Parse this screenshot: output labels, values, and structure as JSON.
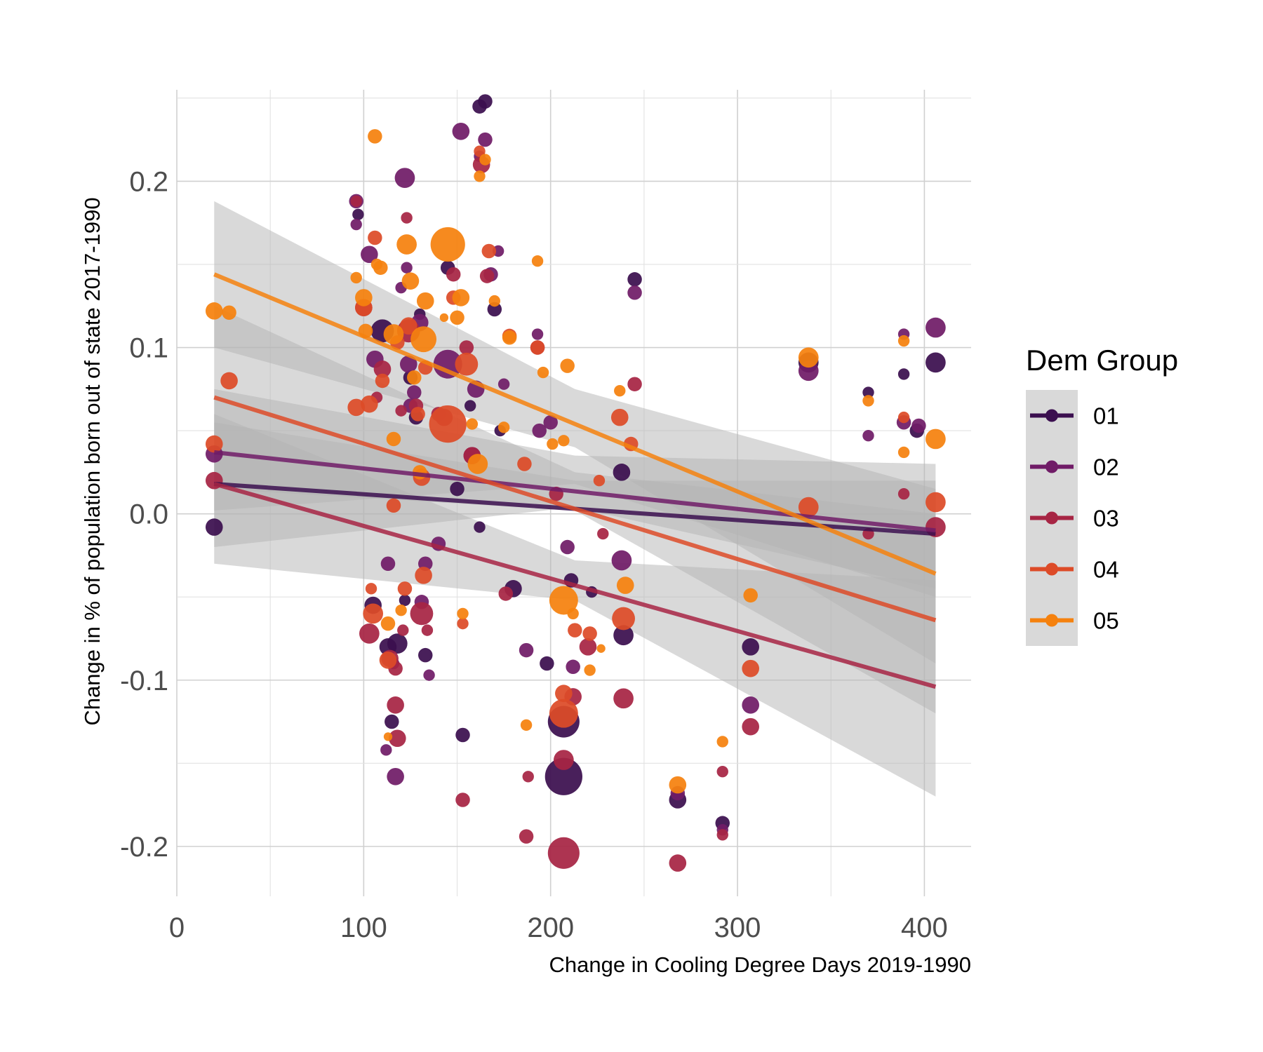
{
  "chart_data": {
    "type": "scatter",
    "title": "",
    "xlabel": "Change in Cooling Degree Days 2019-1990",
    "ylabel": "Change in % of population born out of state 2017-1990",
    "xlim": [
      0,
      425
    ],
    "ylim": [
      -0.23,
      0.255
    ],
    "x_ticks": [
      0,
      100,
      200,
      300,
      400
    ],
    "x_tick_labels": [
      "0",
      "100",
      "200",
      "300",
      "400"
    ],
    "y_ticks": [
      -0.2,
      -0.1,
      0.0,
      0.1,
      0.2
    ],
    "y_tick_labels": [
      "-0.2",
      "-0.1",
      "0.0",
      "0.1",
      "0.2"
    ],
    "grid": true,
    "legend": {
      "title": "Dem Group",
      "position": "right",
      "entries": [
        "01",
        "02",
        "03",
        "04",
        "05"
      ]
    },
    "colors": {
      "01": "#3b0f4f",
      "02": "#701c67",
      "03": "#a72544",
      "04": "#dd4b28",
      "05": "#f5810e",
      "ribbon": "#b3b3b3",
      "legend_key_bg": "#d9d9d9"
    },
    "series": [
      {
        "name": "01",
        "trend": {
          "x": [
            20,
            406
          ],
          "y": [
            0.018,
            -0.012
          ]
        },
        "ribbon": {
          "x": [
            20,
            213,
            406
          ],
          "lower": [
            -0.02,
            0.004,
            -0.045
          ],
          "upper": [
            0.055,
            0.02,
            0.02
          ]
        },
        "points": [
          [
            20,
            -0.008,
            6
          ],
          [
            97,
            0.18,
            4
          ],
          [
            105,
            -0.055,
            6
          ],
          [
            110,
            0.11,
            8
          ],
          [
            113,
            -0.08,
            6
          ],
          [
            115,
            -0.125,
            5
          ],
          [
            118,
            -0.078,
            7
          ],
          [
            122,
            -0.052,
            4
          ],
          [
            125,
            0.082,
            5
          ],
          [
            128,
            0.058,
            5
          ],
          [
            130,
            0.12,
            4
          ],
          [
            133,
            -0.085,
            5
          ],
          [
            145,
            0.148,
            5
          ],
          [
            150,
            0.015,
            5
          ],
          [
            153,
            -0.133,
            5
          ],
          [
            157,
            0.065,
            4
          ],
          [
            162,
            0.245,
            5
          ],
          [
            165,
            0.248,
            5
          ],
          [
            170,
            0.123,
            5
          ],
          [
            173,
            0.05,
            4
          ],
          [
            180,
            -0.045,
            6
          ],
          [
            198,
            -0.09,
            5
          ],
          [
            207,
            -0.158,
            13
          ],
          [
            207,
            -0.125,
            11
          ],
          [
            211,
            -0.04,
            5
          ],
          [
            222,
            -0.047,
            4
          ],
          [
            238,
            0.025,
            6
          ],
          [
            239,
            -0.073,
            7
          ],
          [
            245,
            0.141,
            5
          ],
          [
            268,
            -0.172,
            6
          ],
          [
            292,
            -0.186,
            5
          ],
          [
            307,
            -0.08,
            6
          ],
          [
            338,
            0.091,
            7
          ],
          [
            370,
            0.073,
            4
          ],
          [
            389,
            0.084,
            4
          ],
          [
            396,
            0.05,
            5
          ],
          [
            406,
            0.091,
            7
          ],
          [
            162,
            -0.008,
            4
          ]
        ]
      },
      {
        "name": "02",
        "trend": {
          "x": [
            20,
            406
          ],
          "y": [
            0.037,
            -0.01
          ]
        },
        "ribbon": {
          "x": [
            20,
            213,
            406
          ],
          "lower": [
            0.002,
            0.018,
            -0.05
          ],
          "upper": [
            0.075,
            0.035,
            0.03
          ]
        },
        "points": [
          [
            20,
            0.036,
            6
          ],
          [
            96,
            0.188,
            5
          ],
          [
            96,
            0.174,
            4
          ],
          [
            103,
            0.156,
            6
          ],
          [
            106,
            0.093,
            6
          ],
          [
            113,
            -0.03,
            5
          ],
          [
            116,
            -0.09,
            4
          ],
          [
            120,
            0.136,
            4
          ],
          [
            122,
            0.202,
            7
          ],
          [
            123,
            0.148,
            4
          ],
          [
            124,
            0.09,
            6
          ],
          [
            125,
            0.065,
            5
          ],
          [
            127,
            0.073,
            5
          ],
          [
            130,
            0.115,
            6
          ],
          [
            131,
            -0.053,
            5
          ],
          [
            133,
            -0.03,
            5
          ],
          [
            135,
            -0.097,
            4
          ],
          [
            140,
            -0.018,
            5
          ],
          [
            145,
            0.09,
            10
          ],
          [
            152,
            0.23,
            6
          ],
          [
            158,
            0.035,
            6
          ],
          [
            160,
            0.075,
            6
          ],
          [
            162,
            0.215,
            4
          ],
          [
            165,
            0.225,
            5
          ],
          [
            168,
            0.144,
            5
          ],
          [
            172,
            0.158,
            4
          ],
          [
            175,
            0.078,
            4
          ],
          [
            187,
            -0.082,
            5
          ],
          [
            193,
            0.108,
            4
          ],
          [
            194,
            0.05,
            5
          ],
          [
            200,
            0.055,
            5
          ],
          [
            209,
            -0.02,
            5
          ],
          [
            212,
            -0.092,
            5
          ],
          [
            238,
            -0.028,
            7
          ],
          [
            245,
            0.133,
            5
          ],
          [
            268,
            -0.168,
            5
          ],
          [
            292,
            -0.19,
            4
          ],
          [
            307,
            -0.115,
            6
          ],
          [
            338,
            0.086,
            7
          ],
          [
            370,
            0.047,
            4
          ],
          [
            389,
            0.108,
            4
          ],
          [
            389,
            0.055,
            5
          ],
          [
            397,
            0.053,
            5
          ],
          [
            406,
            0.112,
            7
          ],
          [
            117,
            -0.158,
            6
          ],
          [
            112,
            -0.142,
            4
          ]
        ]
      },
      {
        "name": "03",
        "trend": {
          "x": [
            20,
            406
          ],
          "y": [
            0.018,
            -0.104
          ]
        },
        "ribbon": {
          "x": [
            20,
            213,
            406
          ],
          "lower": [
            -0.03,
            -0.052,
            -0.17
          ],
          "upper": [
            0.06,
            -0.028,
            -0.04
          ]
        },
        "points": [
          [
            20,
            0.02,
            6
          ],
          [
            96,
            0.188,
            4
          ],
          [
            100,
            0.124,
            6
          ],
          [
            103,
            -0.072,
            7
          ],
          [
            107,
            0.07,
            4
          ],
          [
            110,
            0.087,
            6
          ],
          [
            114,
            -0.087,
            6
          ],
          [
            117,
            -0.115,
            6
          ],
          [
            118,
            -0.135,
            6
          ],
          [
            120,
            0.062,
            4
          ],
          [
            121,
            -0.07,
            4
          ],
          [
            123,
            0.178,
            4
          ],
          [
            124,
            0.11,
            8
          ],
          [
            128,
            0.065,
            5
          ],
          [
            131,
            -0.06,
            8
          ],
          [
            134,
            -0.07,
            4
          ],
          [
            140,
            0.06,
            5
          ],
          [
            148,
            0.144,
            5
          ],
          [
            153,
            -0.172,
            5
          ],
          [
            155,
            0.1,
            5
          ],
          [
            158,
            0.035,
            6
          ],
          [
            163,
            0.21,
            6
          ],
          [
            166,
            0.143,
            5
          ],
          [
            176,
            -0.048,
            5
          ],
          [
            187,
            -0.194,
            5
          ],
          [
            188,
            -0.158,
            4
          ],
          [
            193,
            0.1,
            5
          ],
          [
            203,
            0.012,
            5
          ],
          [
            207,
            -0.204,
            11
          ],
          [
            207,
            -0.148,
            7
          ],
          [
            212,
            -0.11,
            6
          ],
          [
            220,
            -0.08,
            6
          ],
          [
            228,
            -0.012,
            4
          ],
          [
            239,
            -0.111,
            7
          ],
          [
            245,
            0.078,
            5
          ],
          [
            268,
            -0.21,
            6
          ],
          [
            292,
            -0.155,
            4
          ],
          [
            292,
            -0.193,
            4
          ],
          [
            307,
            -0.128,
            6
          ],
          [
            370,
            -0.012,
            4
          ],
          [
            389,
            0.012,
            4
          ],
          [
            406,
            -0.008,
            7
          ],
          [
            117,
            -0.093,
            5
          ],
          [
            143,
            0.058,
            6
          ]
        ]
      },
      {
        "name": "04",
        "trend": {
          "x": [
            20,
            406
          ],
          "y": [
            0.07,
            -0.064
          ]
        },
        "ribbon": {
          "x": [
            20,
            213,
            406
          ],
          "lower": [
            0.015,
            0.002,
            -0.12
          ],
          "upper": [
            0.125,
            0.025,
            0.0
          ]
        },
        "points": [
          [
            20,
            0.042,
            6
          ],
          [
            28,
            0.08,
            6
          ],
          [
            96,
            0.064,
            6
          ],
          [
            100,
            0.124,
            6
          ],
          [
            103,
            0.066,
            6
          ],
          [
            104,
            -0.045,
            4
          ],
          [
            105,
            -0.06,
            7
          ],
          [
            106,
            0.166,
            5
          ],
          [
            110,
            0.08,
            5
          ],
          [
            113,
            -0.088,
            6
          ],
          [
            118,
            0.103,
            5
          ],
          [
            122,
            -0.045,
            5
          ],
          [
            124,
            0.113,
            6
          ],
          [
            129,
            0.06,
            5
          ],
          [
            132,
            -0.037,
            6
          ],
          [
            133,
            0.088,
            5
          ],
          [
            145,
            0.054,
            13
          ],
          [
            148,
            0.13,
            5
          ],
          [
            153,
            -0.066,
            4
          ],
          [
            155,
            0.09,
            8
          ],
          [
            162,
            0.218,
            4
          ],
          [
            167,
            0.158,
            5
          ],
          [
            178,
            0.107,
            5
          ],
          [
            186,
            0.03,
            5
          ],
          [
            193,
            0.1,
            5
          ],
          [
            207,
            -0.108,
            6
          ],
          [
            207,
            -0.12,
            10
          ],
          [
            213,
            -0.07,
            5
          ],
          [
            221,
            -0.072,
            5
          ],
          [
            226,
            0.02,
            4
          ],
          [
            237,
            0.058,
            6
          ],
          [
            239,
            -0.063,
            8
          ],
          [
            243,
            0.042,
            5
          ],
          [
            307,
            -0.093,
            6
          ],
          [
            338,
            0.004,
            7
          ],
          [
            389,
            0.058,
            4
          ],
          [
            406,
            0.007,
            7
          ],
          [
            116,
            0.005,
            5
          ],
          [
            131,
            0.022,
            6
          ]
        ]
      },
      {
        "name": "05",
        "trend": {
          "x": [
            20,
            406
          ],
          "y": [
            0.144,
            -0.036
          ]
        },
        "ribbon": {
          "x": [
            20,
            213,
            406
          ],
          "lower": [
            0.1,
            0.04,
            -0.09
          ],
          "upper": [
            0.188,
            0.075,
            0.015
          ]
        },
        "points": [
          [
            20,
            0.122,
            6
          ],
          [
            28,
            0.121,
            5
          ],
          [
            96,
            0.142,
            4
          ],
          [
            100,
            0.13,
            6
          ],
          [
            101,
            0.11,
            5
          ],
          [
            106,
            0.227,
            5
          ],
          [
            107,
            0.15,
            4
          ],
          [
            109,
            0.148,
            5
          ],
          [
            113,
            -0.066,
            5
          ],
          [
            113,
            -0.134,
            3
          ],
          [
            116,
            0.108,
            7
          ],
          [
            120,
            -0.058,
            4
          ],
          [
            123,
            0.162,
            7
          ],
          [
            125,
            0.14,
            6
          ],
          [
            127,
            0.082,
            5
          ],
          [
            132,
            0.105,
            9
          ],
          [
            133,
            0.128,
            6
          ],
          [
            143,
            0.118,
            3
          ],
          [
            145,
            0.162,
            12
          ],
          [
            150,
            0.118,
            5
          ],
          [
            152,
            0.13,
            6
          ],
          [
            153,
            -0.06,
            4
          ],
          [
            158,
            0.054,
            4
          ],
          [
            161,
            0.03,
            7
          ],
          [
            162,
            0.203,
            4
          ],
          [
            165,
            0.213,
            4
          ],
          [
            170,
            0.128,
            4
          ],
          [
            175,
            0.052,
            4
          ],
          [
            178,
            0.106,
            5
          ],
          [
            187,
            -0.127,
            4
          ],
          [
            193,
            0.152,
            4
          ],
          [
            196,
            0.085,
            4
          ],
          [
            201,
            0.042,
            4
          ],
          [
            207,
            -0.052,
            10
          ],
          [
            207,
            0.044,
            4
          ],
          [
            209,
            0.089,
            5
          ],
          [
            212,
            -0.06,
            4
          ],
          [
            221,
            -0.094,
            4
          ],
          [
            227,
            -0.081,
            3
          ],
          [
            237,
            0.074,
            4
          ],
          [
            240,
            -0.043,
            6
          ],
          [
            268,
            -0.163,
            6
          ],
          [
            292,
            -0.137,
            4
          ],
          [
            307,
            -0.049,
            5
          ],
          [
            338,
            0.094,
            7
          ],
          [
            370,
            0.068,
            4
          ],
          [
            389,
            0.104,
            4
          ],
          [
            389,
            0.037,
            4
          ],
          [
            406,
            0.045,
            7
          ],
          [
            116,
            0.045,
            5
          ],
          [
            130,
            0.025,
            5
          ]
        ]
      }
    ]
  }
}
